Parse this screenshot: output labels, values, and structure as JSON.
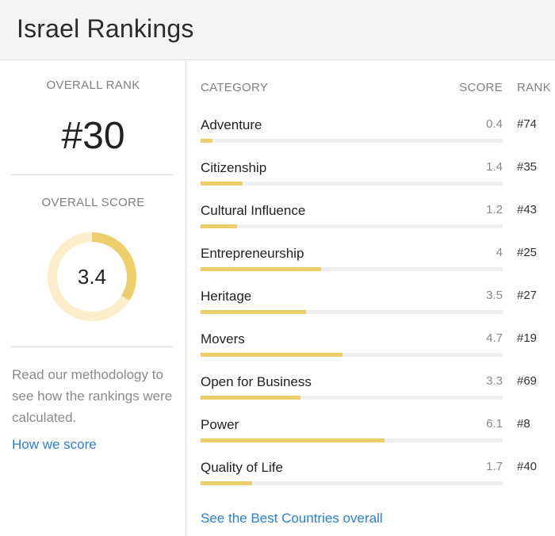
{
  "header": {
    "title": "Israel Rankings"
  },
  "overall": {
    "rank_label": "OVERALL RANK",
    "rank_value": "#30",
    "score_label": "OVERALL SCORE",
    "score_value": "3.4",
    "score_fraction": 0.34,
    "methodology_text": "Read our methodology to see how the rankings were calculated.",
    "how_link": "How we score"
  },
  "table": {
    "headers": {
      "category": "CATEGORY",
      "score": "SCORE",
      "rank": "RANK"
    },
    "rows": [
      {
        "category": "Adventure",
        "score": "0.4",
        "rank": "#74"
      },
      {
        "category": "Citizenship",
        "score": "1.4",
        "rank": "#35"
      },
      {
        "category": "Cultural Influence",
        "score": "1.2",
        "rank": "#43"
      },
      {
        "category": "Entrepreneurship",
        "score": "4",
        "rank": "#25"
      },
      {
        "category": "Heritage",
        "score": "3.5",
        "rank": "#27"
      },
      {
        "category": "Movers",
        "score": "4.7",
        "rank": "#19"
      },
      {
        "category": "Open for Business",
        "score": "3.3",
        "rank": "#69"
      },
      {
        "category": "Power",
        "score": "6.1",
        "rank": "#8"
      },
      {
        "category": "Quality of Life",
        "score": "1.7",
        "rank": "#40"
      }
    ],
    "score_max": 10,
    "footer_link": "See the Best Countries overall"
  },
  "colors": {
    "accent": "#ecce6c",
    "ring_track": "#fbeecb",
    "link": "#2e7fc9"
  }
}
